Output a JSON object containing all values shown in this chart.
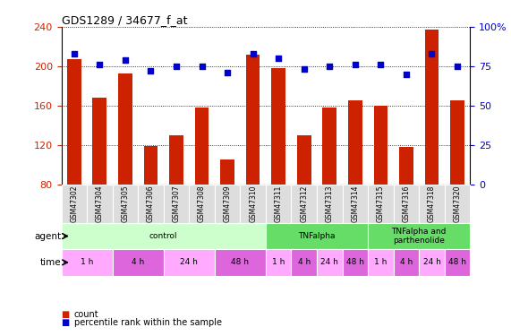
{
  "title": "GDS1289 / 34677_f_at",
  "samples": [
    "GSM47302",
    "GSM47304",
    "GSM47305",
    "GSM47306",
    "GSM47307",
    "GSM47308",
    "GSM47309",
    "GSM47310",
    "GSM47311",
    "GSM47312",
    "GSM47313",
    "GSM47314",
    "GSM47315",
    "GSM47316",
    "GSM47318",
    "GSM47320"
  ],
  "bar_values": [
    207,
    168,
    193,
    119,
    130,
    158,
    105,
    212,
    198,
    130,
    158,
    165,
    160,
    118,
    237,
    165
  ],
  "dot_values": [
    83,
    76,
    79,
    72,
    75,
    75,
    71,
    83,
    80,
    73,
    75,
    76,
    76,
    70,
    83,
    75
  ],
  "bar_color": "#cc2200",
  "dot_color": "#0000cc",
  "ylim_left": [
    80,
    240
  ],
  "ylim_right": [
    0,
    100
  ],
  "yticks_left": [
    80,
    120,
    160,
    200,
    240
  ],
  "yticks_right": [
    0,
    25,
    50,
    75,
    100
  ],
  "agent_groups": [
    {
      "text": "control",
      "start": 0,
      "end": 8,
      "color": "#ccffcc"
    },
    {
      "text": "TNFalpha",
      "start": 8,
      "end": 12,
      "color": "#66dd66"
    },
    {
      "text": "TNFalpha and\nparthenolide",
      "start": 12,
      "end": 16,
      "color": "#66dd66"
    }
  ],
  "time_groups": [
    {
      "text": "1 h",
      "start": 0,
      "end": 2,
      "color": "#ffaaff"
    },
    {
      "text": "4 h",
      "start": 2,
      "end": 4,
      "color": "#dd66dd"
    },
    {
      "text": "24 h",
      "start": 4,
      "end": 6,
      "color": "#ffaaff"
    },
    {
      "text": "48 h",
      "start": 6,
      "end": 8,
      "color": "#dd66dd"
    },
    {
      "text": "1 h",
      "start": 8,
      "end": 9,
      "color": "#ffaaff"
    },
    {
      "text": "4 h",
      "start": 9,
      "end": 10,
      "color": "#dd66dd"
    },
    {
      "text": "24 h",
      "start": 10,
      "end": 11,
      "color": "#ffaaff"
    },
    {
      "text": "48 h",
      "start": 11,
      "end": 12,
      "color": "#dd66dd"
    },
    {
      "text": "1 h",
      "start": 12,
      "end": 13,
      "color": "#ffaaff"
    },
    {
      "text": "4 h",
      "start": 13,
      "end": 14,
      "color": "#dd66dd"
    },
    {
      "text": "24 h",
      "start": 14,
      "end": 15,
      "color": "#ffaaff"
    },
    {
      "text": "48 h",
      "start": 15,
      "end": 16,
      "color": "#dd66dd"
    }
  ],
  "bar_color_hex": "#cc2200",
  "dot_color_hex": "#0000cc",
  "bg_color": "#ffffff",
  "label_bg": "#dddddd",
  "bar_width": 0.55
}
